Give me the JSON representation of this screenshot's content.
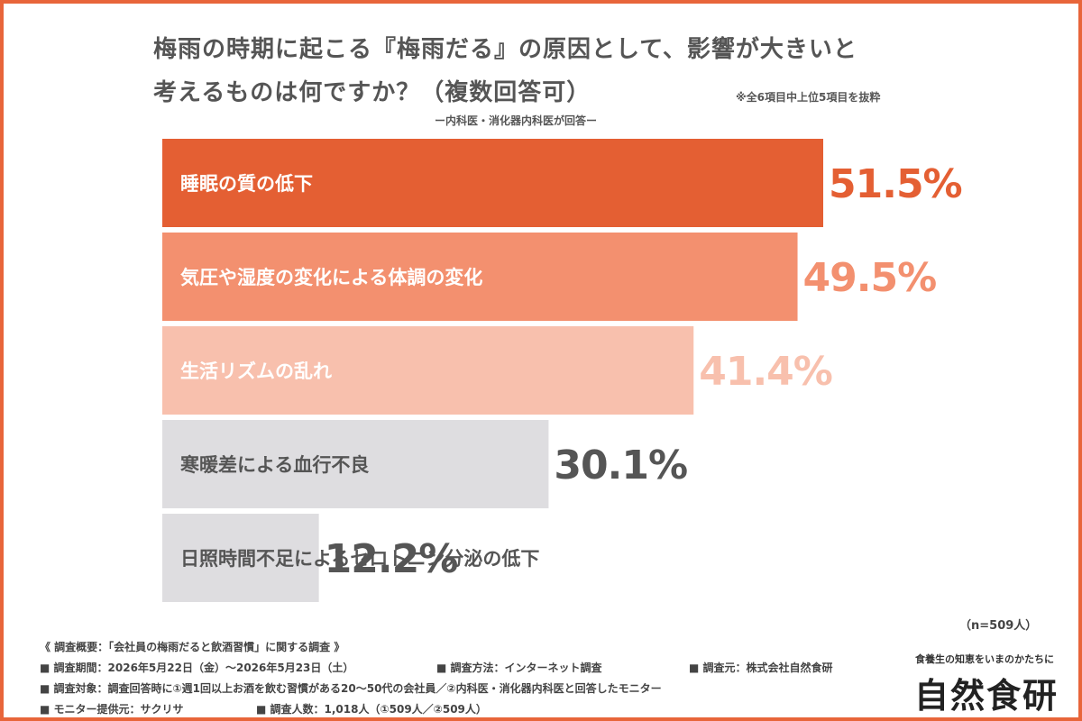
{
  "chart_data": {
    "type": "bar",
    "orientation": "horizontal",
    "title_lines": [
      "梅雨の時期に起こる『梅雨だる』の原因として、影響が大きいと",
      "考えるものは何ですか？（複数回答可）"
    ],
    "subtitle": "ー内科医・消化器内科医が回答ー",
    "note": "※全6項目中上位5項目を抜粋",
    "categories": [
      "睡眠の質の低下",
      "気圧や湿度の変化による体調の変化",
      "生活リズムの乱れ",
      "寒暖差による血行不良",
      "日照時間不足によるセロトニン分泌の低下"
    ],
    "values": [
      51.5,
      49.5,
      41.4,
      30.1,
      12.2
    ],
    "value_labels": [
      "51.5%",
      "49.5%",
      "41.4%",
      "30.1%",
      "12.2%"
    ],
    "unit": "%",
    "xlim": [
      0,
      51.5
    ],
    "grid": false,
    "colors": {
      "bars": [
        "#e45f33",
        "#f3906f",
        "#f8c0ad",
        "#dedde0",
        "#dedde0"
      ],
      "values": [
        "#e45f33",
        "#f3906f",
        "#f8c0ad",
        "#555555",
        "#555555"
      ],
      "labels": [
        "#ffffff",
        "#ffffff",
        "#ffffff",
        "#555555",
        "#555555"
      ]
    }
  },
  "sample_size": "（n=509人）",
  "footer": {
    "survey_title": "《 調査概要：「会社員の梅雨だると飲酒習慣」に関する調査 》",
    "period": "■ 調査期間：2026年5月22日（金）〜2026年5月23日（土）",
    "method": "■ 調査方法：インターネット調査",
    "source": "■ 調査元：株式会社自然食研",
    "target": "■ 調査対象：調査回答時に①週1回以上お酒を飲む習慣がある20〜50代の会社員／②内科医・消化器内科医と回答したモニター",
    "provider": "■ モニター提供元：サクリサ",
    "count": "■ 調査人数：1,018人（①509人／②509人）"
  },
  "brand": {
    "tagline": "食養生の知恵をいまのかたちに",
    "name": "自然食研"
  },
  "frame_color": "#e8653a"
}
